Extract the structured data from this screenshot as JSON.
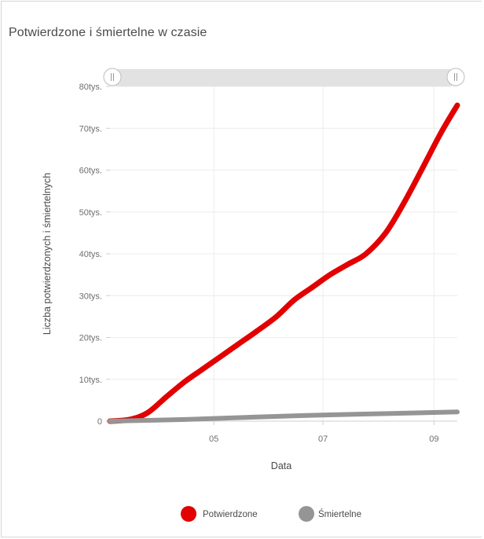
{
  "panel": {
    "title": "Potwierdzone i śmiertelne w czasie"
  },
  "chart_data": {
    "type": "line",
    "xlabel": "Data",
    "ylabel": "Liczba potwierdzonych i śmiertelnych",
    "x_ticks": [
      "05",
      "07",
      "09"
    ],
    "y_ticks": [
      "0",
      "10tys.",
      "20tys.",
      "30tys.",
      "40tys.",
      "50tys.",
      "60tys.",
      "70tys.",
      "80tys."
    ],
    "ylim": [
      0,
      80000
    ],
    "xlim": [
      "2020-03-04",
      "2020-09-14"
    ],
    "grid": true,
    "legend_position": "bottom",
    "series": [
      {
        "name": "Potwierdzone",
        "color": "#e20000",
        "x": [
          "2020-03-04",
          "2020-03-15",
          "2020-03-25",
          "2020-04-05",
          "2020-04-15",
          "2020-04-25",
          "2020-05-05",
          "2020-05-15",
          "2020-05-25",
          "2020-06-05",
          "2020-06-15",
          "2020-06-25",
          "2020-07-05",
          "2020-07-15",
          "2020-07-25",
          "2020-08-05",
          "2020-08-15",
          "2020-08-25",
          "2020-09-05",
          "2020-09-14"
        ],
        "values": [
          0,
          400,
          2000,
          6000,
          9500,
          12500,
          15500,
          18500,
          21500,
          25000,
          29000,
          32000,
          35000,
          37500,
          40000,
          45000,
          52000,
          60000,
          69000,
          75500
        ]
      },
      {
        "name": "Śmiertelne",
        "color": "#959595",
        "x": [
          "2020-03-04",
          "2020-04-15",
          "2020-05-25",
          "2020-07-05",
          "2020-08-15",
          "2020-09-14"
        ],
        "values": [
          0,
          400,
          1000,
          1500,
          1900,
          2200
        ]
      }
    ]
  },
  "slider": {
    "handle_left_icon": "grip-icon",
    "handle_right_icon": "grip-icon"
  }
}
